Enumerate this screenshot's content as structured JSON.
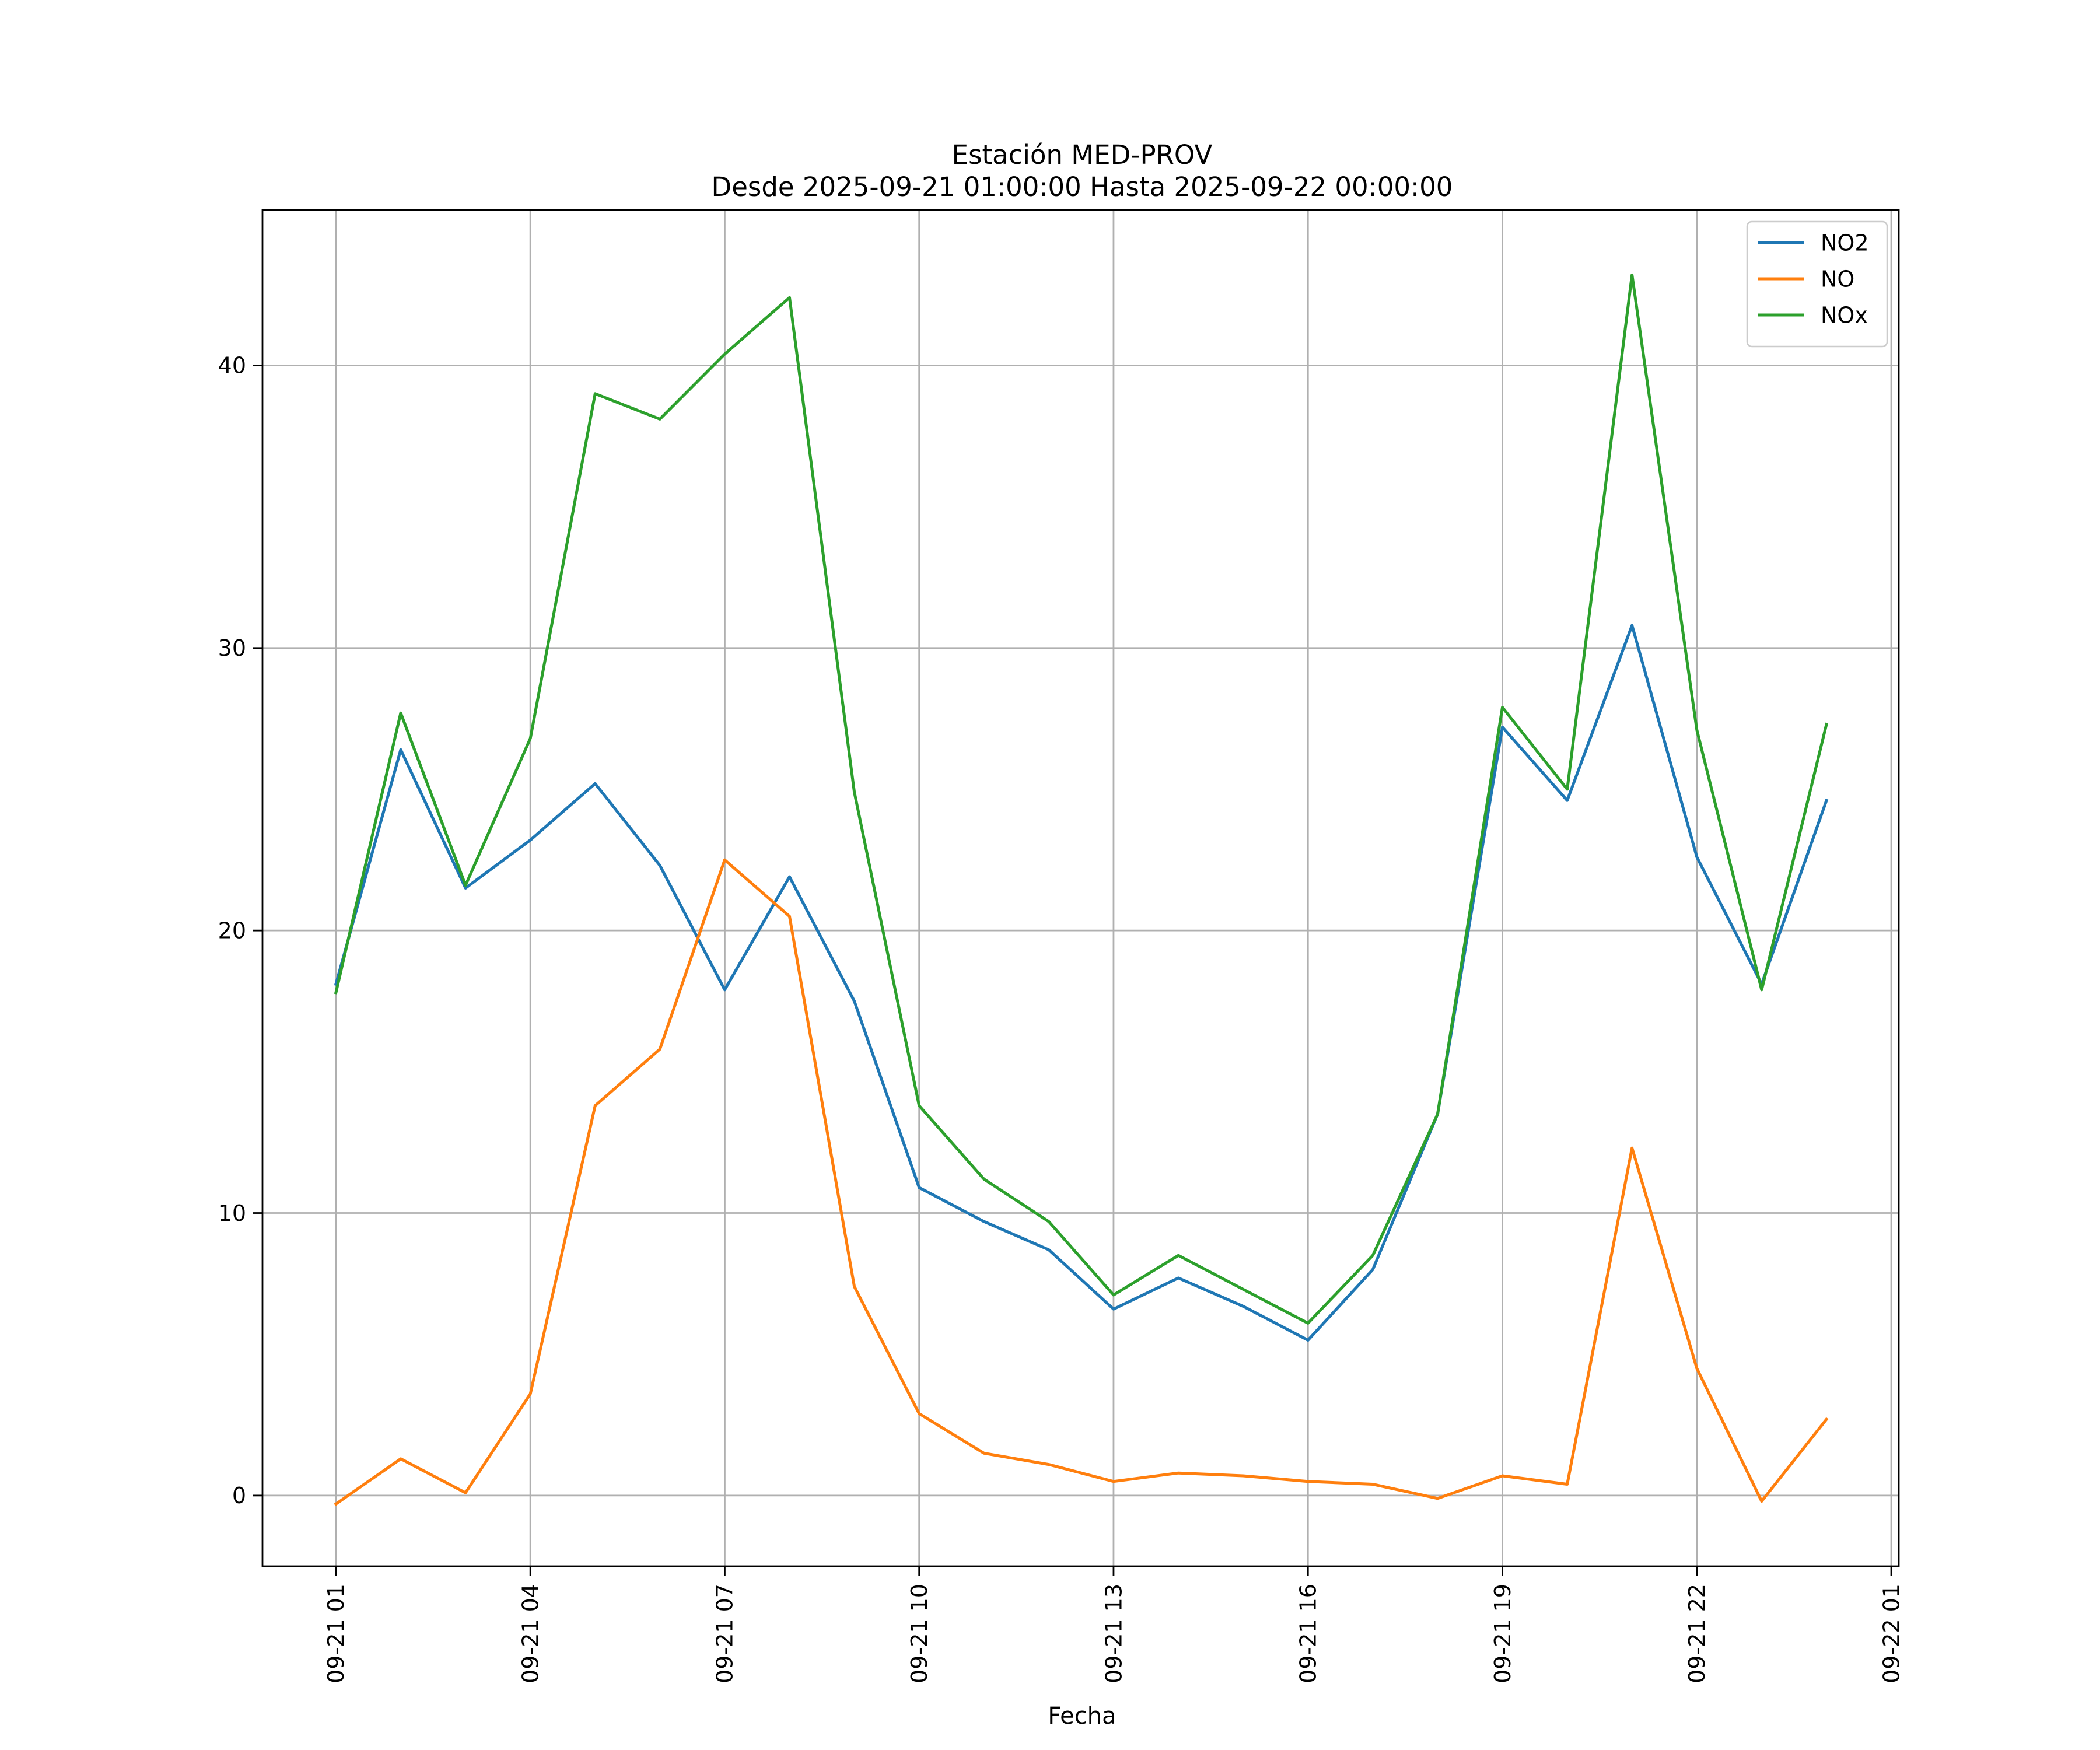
{
  "chart_data": {
    "type": "line",
    "title": "Estación MED-PROV",
    "subtitle": "Desde 2025-09-21 01:00:00 Hasta 2025-09-22 00:00:00",
    "xlabel": "Fecha",
    "ylabel": "",
    "x": [
      "2025-09-21 01:00",
      "2025-09-21 02:00",
      "2025-09-21 03:00",
      "2025-09-21 04:00",
      "2025-09-21 05:00",
      "2025-09-21 06:00",
      "2025-09-21 07:00",
      "2025-09-21 08:00",
      "2025-09-21 09:00",
      "2025-09-21 10:00",
      "2025-09-21 11:00",
      "2025-09-21 12:00",
      "2025-09-21 13:00",
      "2025-09-21 14:00",
      "2025-09-21 15:00",
      "2025-09-21 16:00",
      "2025-09-21 17:00",
      "2025-09-21 18:00",
      "2025-09-21 19:00",
      "2025-09-21 20:00",
      "2025-09-21 21:00",
      "2025-09-21 22:00",
      "2025-09-21 23:00",
      "2025-09-22 00:00"
    ],
    "xlim": [
      "2025-09-20 23:52",
      "2025-09-22 01:07"
    ],
    "x_ticks": [
      {
        "label": "09-21 01",
        "value": "2025-09-21 01:00"
      },
      {
        "label": "09-21 04",
        "value": "2025-09-21 04:00"
      },
      {
        "label": "09-21 07",
        "value": "2025-09-21 07:00"
      },
      {
        "label": "09-21 10",
        "value": "2025-09-21 10:00"
      },
      {
        "label": "09-21 13",
        "value": "2025-09-21 13:00"
      },
      {
        "label": "09-21 16",
        "value": "2025-09-21 16:00"
      },
      {
        "label": "09-21 19",
        "value": "2025-09-21 19:00"
      },
      {
        "label": "09-21 22",
        "value": "2025-09-21 22:00"
      },
      {
        "label": "09-22 01",
        "value": "2025-09-22 01:00"
      }
    ],
    "ylim": [
      -2.5,
      45.5
    ],
    "y_ticks": [
      0,
      10,
      20,
      30,
      40
    ],
    "grid": true,
    "legend": "top-right",
    "series": [
      {
        "name": "NO2",
        "color": "#1f77b4",
        "values": [
          18.1,
          26.4,
          21.5,
          23.2,
          25.2,
          22.3,
          17.9,
          21.9,
          17.5,
          10.9,
          9.7,
          8.7,
          6.6,
          7.7,
          6.7,
          5.5,
          8.0,
          13.5,
          27.2,
          24.6,
          30.8,
          22.6,
          18.1,
          24.6
        ]
      },
      {
        "name": "NO",
        "color": "#ff7f0e",
        "values": [
          -0.3,
          1.3,
          0.1,
          3.6,
          13.8,
          15.8,
          22.5,
          20.5,
          7.4,
          2.9,
          1.5,
          1.1,
          0.5,
          0.8,
          0.7,
          0.5,
          0.4,
          -0.1,
          0.7,
          0.4,
          12.3,
          4.5,
          -0.2,
          2.7
        ]
      },
      {
        "name": "NOx",
        "color": "#2ca02c",
        "values": [
          17.8,
          27.7,
          21.6,
          26.8,
          39.0,
          38.1,
          40.4,
          42.4,
          24.9,
          13.8,
          11.2,
          9.7,
          7.1,
          8.5,
          7.3,
          6.1,
          8.5,
          13.5,
          27.9,
          25.0,
          43.2,
          27.1,
          17.9,
          27.3
        ]
      }
    ]
  }
}
